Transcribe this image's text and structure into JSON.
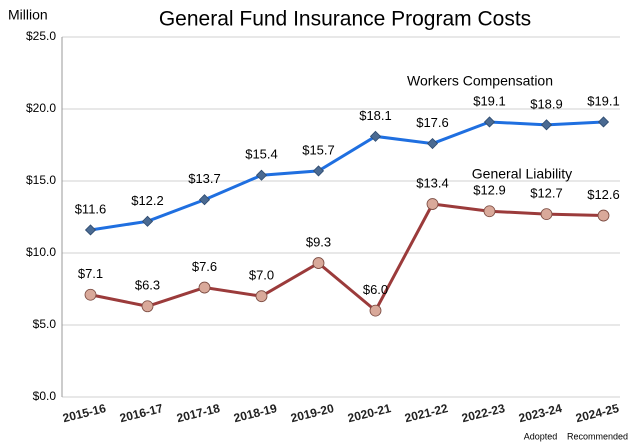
{
  "chart_data": {
    "type": "line",
    "title": "General Fund Insurance Program Costs",
    "y_axis_label": "Million",
    "categories": [
      "2015-16",
      "2016-17",
      "2017-18",
      "2018-19",
      "2019-20",
      "2020-21",
      "2021-22",
      "2022-23",
      "2023-24",
      "2024-25"
    ],
    "category_notes": [
      null,
      null,
      null,
      null,
      null,
      null,
      null,
      null,
      "Adopted",
      "Recommended"
    ],
    "series": [
      {
        "name": "Workers Compensation",
        "color": "#1f6fe0",
        "marker": "diamond",
        "marker_color": "#4a6a92",
        "values": [
          11.6,
          12.2,
          13.7,
          15.4,
          15.7,
          18.1,
          17.6,
          19.1,
          18.9,
          19.1
        ],
        "value_labels": [
          "$11.6",
          "$12.2",
          "$13.7",
          "$15.4",
          "$15.7",
          "$18.1",
          "$17.6",
          "$19.1",
          "$18.9",
          "$19.1"
        ]
      },
      {
        "name": "General Liability",
        "color": "#9b3b3b",
        "marker": "circle",
        "marker_color": "#d9a99a",
        "values": [
          7.1,
          6.3,
          7.6,
          7.0,
          9.3,
          6.0,
          13.4,
          12.9,
          12.7,
          12.6
        ],
        "value_labels": [
          "$7.1",
          "$6.3",
          "$7.6",
          "$7.0",
          "$9.3",
          "$6.0",
          "$13.4",
          "$12.9",
          "$12.7",
          "$12.6"
        ]
      }
    ],
    "ylim": [
      0,
      25
    ],
    "yticks": [
      {
        "value": 0,
        "label": "$0.0"
      },
      {
        "value": 5,
        "label": "$5.0"
      },
      {
        "value": 10,
        "label": "$10.0"
      },
      {
        "value": 15,
        "label": "$15.0"
      },
      {
        "value": 20,
        "label": "$20.0"
      },
      {
        "value": 25,
        "label": "$25.0"
      }
    ],
    "grid": true
  }
}
